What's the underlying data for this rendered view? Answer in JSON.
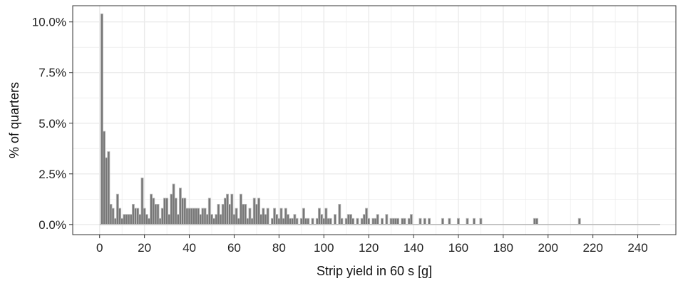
{
  "chart_data": {
    "type": "bar",
    "title": "",
    "xlabel": "Strip yield in 60 s [g]",
    "ylabel": "% of quarters",
    "xlim": [
      -12,
      257
    ],
    "ylim": [
      -0.5,
      10.8
    ],
    "x_ticks": [
      0,
      20,
      40,
      60,
      80,
      100,
      120,
      140,
      160,
      180,
      200,
      220,
      240
    ],
    "x_tick_labels": [
      "0",
      "20",
      "40",
      "60",
      "80",
      "100",
      "120",
      "140",
      "160",
      "180",
      "200",
      "220",
      "240"
    ],
    "y_ticks": [
      0,
      2.5,
      5,
      7.5,
      10
    ],
    "y_tick_labels": [
      "0.0%",
      "2.5%",
      "5.0%",
      "7.5%",
      "10.0%"
    ],
    "y_unit": "percent",
    "grid": true,
    "legend": "none",
    "bin_width_g": 1,
    "x_range": [
      0,
      250
    ],
    "colors": {
      "bar_fill": "#777777",
      "bar_stroke": "#bbbbbb",
      "grid": "#ebebeb",
      "panel_border": "#333333"
    },
    "series": [
      {
        "points": [
          [
            1,
            10.4
          ],
          [
            2,
            4.6
          ],
          [
            3,
            3.3
          ],
          [
            4,
            3.6
          ],
          [
            5,
            1.0
          ],
          [
            6,
            0.8
          ],
          [
            7,
            0.3
          ],
          [
            8,
            1.5
          ],
          [
            9,
            0.8
          ],
          [
            10,
            0.3
          ],
          [
            11,
            0.5
          ],
          [
            12,
            0.5
          ],
          [
            13,
            0.5
          ],
          [
            14,
            0.5
          ],
          [
            15,
            1.0
          ],
          [
            16,
            0.8
          ],
          [
            17,
            0.8
          ],
          [
            18,
            0.5
          ],
          [
            19,
            2.3
          ],
          [
            20,
            0.8
          ],
          [
            21,
            0.5
          ],
          [
            22,
            0.3
          ],
          [
            23,
            1.5
          ],
          [
            24,
            1.3
          ],
          [
            25,
            1.0
          ],
          [
            26,
            1.0
          ],
          [
            27,
            0.3
          ],
          [
            28,
            0.8
          ],
          [
            29,
            1.3
          ],
          [
            30,
            1.3
          ],
          [
            31,
            0.5
          ],
          [
            32,
            1.5
          ],
          [
            33,
            2.0
          ],
          [
            34,
            1.3
          ],
          [
            35,
            0.5
          ],
          [
            36,
            1.8
          ],
          [
            37,
            1.3
          ],
          [
            38,
            1.3
          ],
          [
            39,
            0.8
          ],
          [
            40,
            0.8
          ],
          [
            41,
            0.8
          ],
          [
            42,
            0.8
          ],
          [
            43,
            0.8
          ],
          [
            44,
            0.8
          ],
          [
            45,
            0.5
          ],
          [
            46,
            0.8
          ],
          [
            47,
            0.8
          ],
          [
            48,
            0.5
          ],
          [
            49,
            1.3
          ],
          [
            50,
            0.5
          ],
          [
            51,
            0.3
          ],
          [
            52,
            0.5
          ],
          [
            53,
            1.0
          ],
          [
            54,
            0.5
          ],
          [
            55,
            1.0
          ],
          [
            56,
            1.3
          ],
          [
            57,
            1.5
          ],
          [
            58,
            1.0
          ],
          [
            59,
            1.5
          ],
          [
            60,
            0.5
          ],
          [
            61,
            0.8
          ],
          [
            62,
            0.3
          ],
          [
            63,
            1.5
          ],
          [
            64,
            1.0
          ],
          [
            65,
            1.0
          ],
          [
            66,
            0.3
          ],
          [
            67,
            0.8
          ],
          [
            68,
            0.3
          ],
          [
            69,
            1.3
          ],
          [
            70,
            1.0
          ],
          [
            71,
            1.3
          ],
          [
            72,
            0.5
          ],
          [
            73,
            0.8
          ],
          [
            74,
            0.5
          ],
          [
            75,
            0.8
          ],
          [
            77,
            0.3
          ],
          [
            78,
            0.8
          ],
          [
            79,
            0.5
          ],
          [
            80,
            0.3
          ],
          [
            81,
            0.8
          ],
          [
            82,
            0.3
          ],
          [
            83,
            0.8
          ],
          [
            84,
            0.5
          ],
          [
            85,
            0.3
          ],
          [
            86,
            0.3
          ],
          [
            87,
            0.5
          ],
          [
            88,
            0.3
          ],
          [
            90,
            0.3
          ],
          [
            91,
            0.8
          ],
          [
            92,
            0.3
          ],
          [
            93,
            0.3
          ],
          [
            95,
            0.3
          ],
          [
            97,
            0.3
          ],
          [
            98,
            0.8
          ],
          [
            99,
            0.5
          ],
          [
            100,
            0.3
          ],
          [
            101,
            0.8
          ],
          [
            102,
            0.3
          ],
          [
            103,
            0.3
          ],
          [
            105,
            0.5
          ],
          [
            107,
            1.0
          ],
          [
            108,
            0.3
          ],
          [
            110,
            0.3
          ],
          [
            111,
            0.5
          ],
          [
            112,
            0.5
          ],
          [
            113,
            0.3
          ],
          [
            115,
            0.3
          ],
          [
            117,
            0.3
          ],
          [
            118,
            0.5
          ],
          [
            119,
            0.8
          ],
          [
            120,
            0.3
          ],
          [
            122,
            0.3
          ],
          [
            123,
            0.3
          ],
          [
            124,
            0.5
          ],
          [
            126,
            0.3
          ],
          [
            128,
            0.5
          ],
          [
            130,
            0.3
          ],
          [
            131,
            0.3
          ],
          [
            132,
            0.3
          ],
          [
            133,
            0.3
          ],
          [
            135,
            0.3
          ],
          [
            136,
            0.3
          ],
          [
            138,
            0.3
          ],
          [
            139,
            0.5
          ],
          [
            143,
            0.3
          ],
          [
            145,
            0.3
          ],
          [
            147,
            0.3
          ],
          [
            153,
            0.3
          ],
          [
            156,
            0.3
          ],
          [
            160,
            0.3
          ],
          [
            164,
            0.3
          ],
          [
            167,
            0.3
          ],
          [
            170,
            0.3
          ],
          [
            194,
            0.3
          ],
          [
            195,
            0.3
          ],
          [
            214,
            0.3
          ]
        ]
      }
    ]
  }
}
